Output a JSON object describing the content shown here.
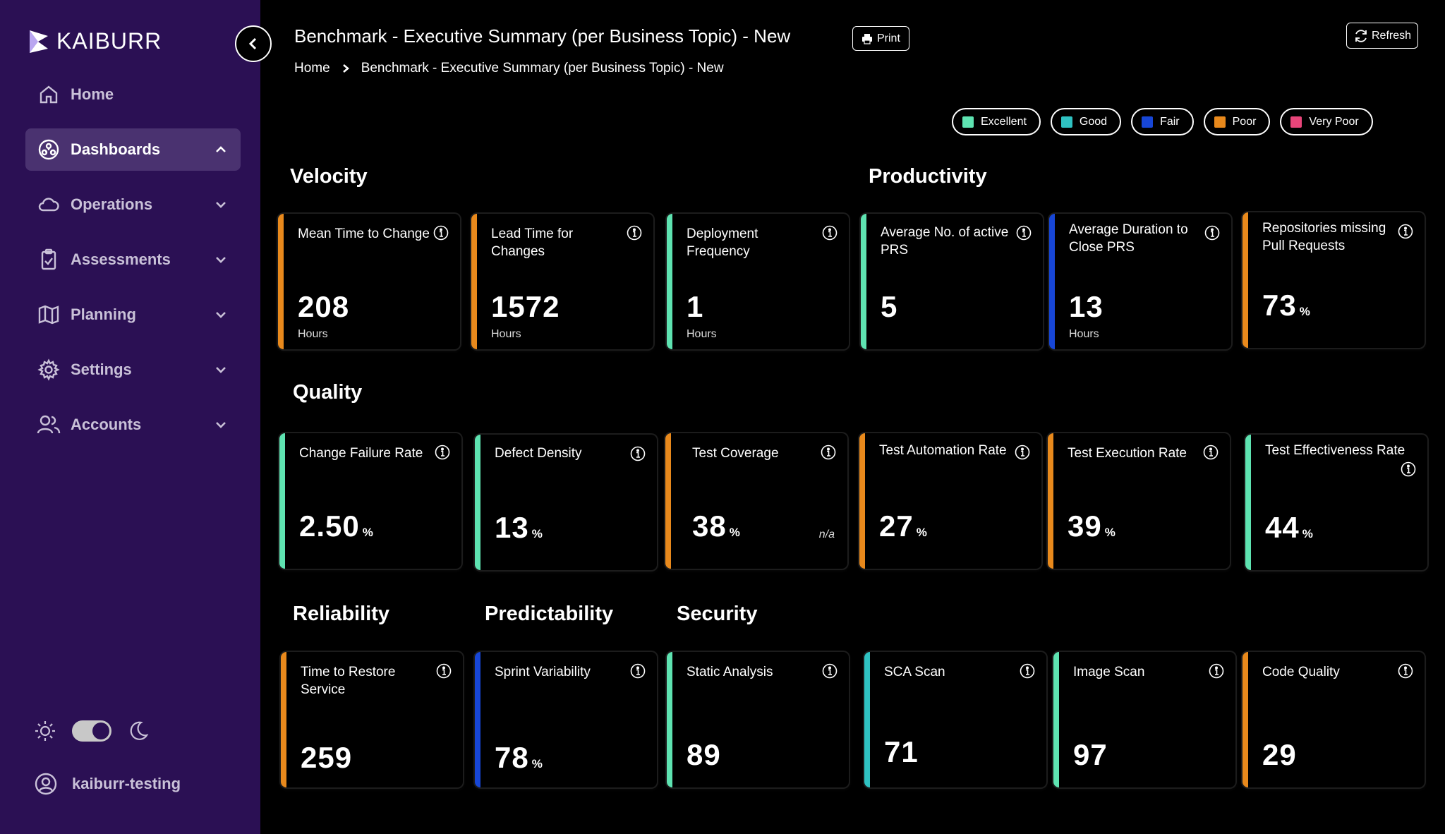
{
  "sidebar": {
    "logo": "KAIBURR",
    "items": [
      {
        "label": "Home",
        "icon": "home-icon"
      },
      {
        "label": "Dashboards",
        "icon": "dashboard-icon"
      },
      {
        "label": "Operations",
        "icon": "cloud-icon"
      },
      {
        "label": "Assessments",
        "icon": "clipboard-icon"
      },
      {
        "label": "Planning",
        "icon": "map-icon"
      },
      {
        "label": "Settings",
        "icon": "gear-icon"
      },
      {
        "label": "Accounts",
        "icon": "users-icon"
      }
    ],
    "user": "kaiburr-testing"
  },
  "header": {
    "title": "Benchmark - Executive Summary (per Business Topic) - New",
    "print_label": "Print",
    "refresh_label": "Refresh",
    "breadcrumb": {
      "home": "Home",
      "current": "Benchmark - Executive Summary (per Business Topic) - New"
    }
  },
  "legend": [
    {
      "label": "Excellent",
      "color": "#5ee3b1"
    },
    {
      "label": "Good",
      "color": "#2fc2c2"
    },
    {
      "label": "Fair",
      "color": "#1746d6"
    },
    {
      "label": "Poor",
      "color": "#e8891c"
    },
    {
      "label": "Very Poor",
      "color": "#e8457a"
    }
  ],
  "sections": {
    "velocity": "Velocity",
    "productivity": "Productivity",
    "quality": "Quality",
    "reliability": "Reliability",
    "predictability": "Predictability",
    "security": "Security"
  },
  "cards": {
    "mean_time_to_change": {
      "label": "Mean Time to Change",
      "value": "208",
      "sub": "Hours"
    },
    "lead_time_for_changes": {
      "label": "Lead Time for Changes",
      "value": "1572",
      "sub": "Hours"
    },
    "deployment_frequency": {
      "label": "Deployment Frequency",
      "value": "1",
      "sub": "Hours"
    },
    "avg_active_prs": {
      "label": "Average No. of active PRS",
      "value": "5"
    },
    "avg_duration_close_prs": {
      "label": "Average Duration to Close PRS",
      "value": "13",
      "sub": "Hours"
    },
    "repos_missing_prs": {
      "label": "Repositories missing Pull Requests",
      "value": "73",
      "unit": "%"
    },
    "change_failure_rate": {
      "label": "Change Failure Rate",
      "value": "2.50",
      "unit": "%"
    },
    "defect_density": {
      "label": "Defect Density",
      "value": "13",
      "unit": "%"
    },
    "test_coverage": {
      "label": "Test Coverage",
      "value": "38",
      "unit": "%",
      "na": "n/a"
    },
    "test_automation_rate": {
      "label": "Test Automation Rate",
      "value": "27",
      "unit": "%"
    },
    "test_execution_rate": {
      "label": "Test Execution Rate",
      "value": "39",
      "unit": "%"
    },
    "test_effectiveness_rate": {
      "label": "Test Effectiveness Rate",
      "value": "44",
      "unit": "%"
    },
    "time_to_restore": {
      "label": "Time to Restore Service",
      "value": "259"
    },
    "sprint_variability": {
      "label": "Sprint Variability",
      "value": "78",
      "unit": "%"
    },
    "static_analysis": {
      "label": "Static Analysis",
      "value": "89"
    },
    "sca_scan": {
      "label": "SCA Scan",
      "value": "71"
    },
    "image_scan": {
      "label": "Image Scan",
      "value": "97"
    },
    "code_quality": {
      "label": "Code Quality",
      "value": "29"
    }
  }
}
